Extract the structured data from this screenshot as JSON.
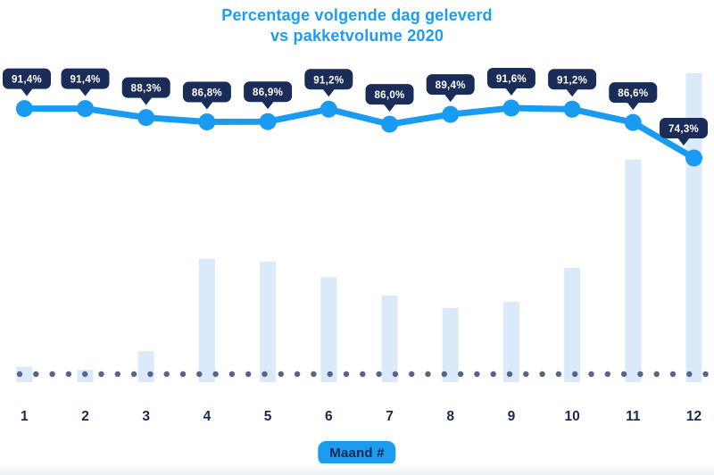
{
  "title": {
    "line1": "Percentage volgende dag geleverd",
    "line2": "vs pakketvolume 2020"
  },
  "x_axis_label": "Maand #",
  "colors": {
    "title_blue": "#1d9cf3",
    "line_blue": "#189bf0",
    "tooltip_navy": "#1a2d58",
    "tooltip_text": "#ffffff",
    "bar_light_blue": "#dbeafa",
    "dot_gray_blue": "#56648a",
    "month_label_navy": "#172b52",
    "xlabel_badge_bg": "#1b9cf0",
    "xlabel_badge_text": "#0f2a52"
  },
  "chart_data": {
    "type": "line+bar combo",
    "title": "Percentage volgende dag geleverd vs pakketvolume 2020",
    "xlabel": "Maand #",
    "categories": [
      "1",
      "2",
      "3",
      "4",
      "5",
      "6",
      "7",
      "8",
      "9",
      "10",
      "11",
      "12"
    ],
    "grid": "off",
    "legend": "none",
    "baseline_style": "dotted horizontal line of round dots at bar baseline",
    "series": [
      {
        "name": "Percentage volgende dag geleverd",
        "type": "line",
        "unit": "%",
        "values": [
          91.4,
          91.4,
          88.3,
          86.8,
          86.9,
          91.2,
          86.0,
          89.4,
          91.6,
          91.2,
          86.6,
          74.3
        ],
        "labels": [
          "91,4%",
          "91,4%",
          "88,3%",
          "86,8%",
          "86,9%",
          "91,2%",
          "86,0%",
          "89,4%",
          "91,6%",
          "91,2%",
          "86,6%",
          "74,3%"
        ],
        "label_style": "dark navy tooltip bubble with down-arrow above each marker",
        "color": "#189bf0",
        "value_range_shown": [
          74.3,
          91.6
        ]
      },
      {
        "name": "Pakketvolume 2020",
        "type": "bar",
        "unit": "relative volume index (axis unlabeled, estimated from bar heights, max month = 100)",
        "values": [
          5,
          4,
          10,
          40,
          39,
          34,
          28,
          24,
          26,
          37,
          72,
          100
        ],
        "color": "#dbeafa"
      }
    ]
  }
}
